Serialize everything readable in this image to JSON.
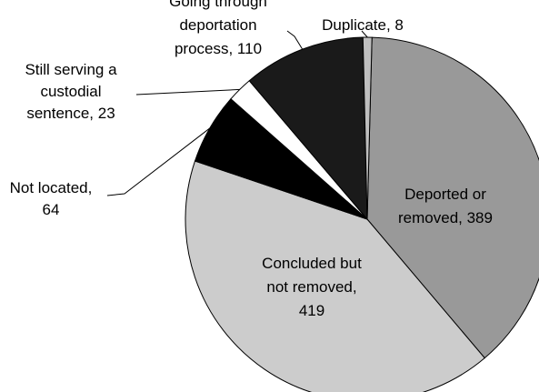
{
  "chart_data": {
    "type": "pie",
    "title": "",
    "slices": [
      {
        "label": "Deported or removed",
        "value": 389,
        "color": "#999999"
      },
      {
        "label": "Concluded but not removed",
        "value": 419,
        "color": "#cccccc"
      },
      {
        "label": "Not located",
        "value": 64,
        "color": "#000000"
      },
      {
        "label": "Still serving a custodial sentence",
        "value": 23,
        "color": "#ffffff"
      },
      {
        "label": "Going through deportation process",
        "value": 110,
        "color": "#1a1a1a"
      },
      {
        "label": "Duplicate",
        "value": 8,
        "color": "#bfbfbf"
      }
    ],
    "data_labels": [
      [
        "Deported or",
        "removed, 389"
      ],
      [
        "Concluded but",
        "not removed,",
        "419"
      ],
      [
        "Not located,",
        "64"
      ],
      [
        "Still serving a",
        "custodial",
        "sentence, 23"
      ],
      [
        "Going through",
        "deportation",
        "process, 110"
      ],
      [
        "Duplicate, 8"
      ]
    ],
    "legend": "none"
  }
}
